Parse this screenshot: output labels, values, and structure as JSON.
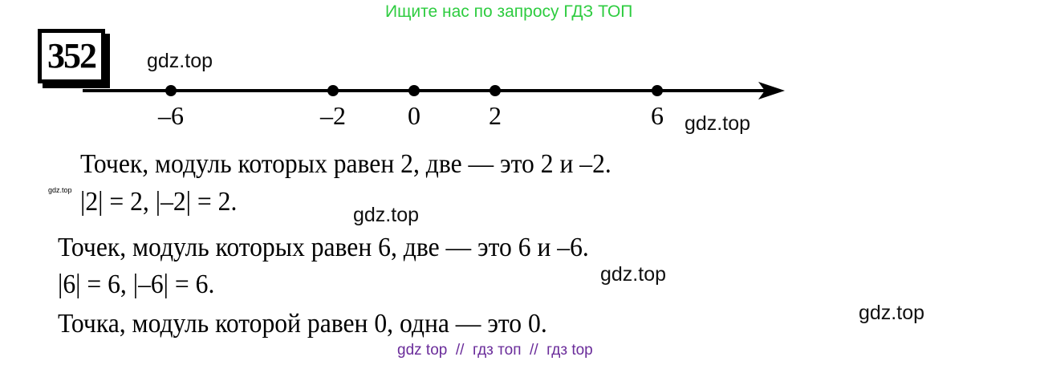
{
  "header_watermark": {
    "text": "Ищите нас по запросу ГДЗ ТОП",
    "color": "#2ecc40"
  },
  "problem_number": "352",
  "number_line": {
    "points": [
      -6,
      -2,
      0,
      2,
      6
    ],
    "labels": [
      "–6",
      "–2",
      "0",
      "2",
      "6"
    ]
  },
  "lines": [
    "Точек, модуль которых равен 2, две — это 2 и –2.",
    "|2| = 2, |–2| = 2.",
    "Точек, модуль которых равен 6, две — это 6 и –6.",
    "|6| = 6, |–6| = 6.",
    "Точка, модуль которой равен 0, одна — это 0."
  ],
  "watermarks": [
    "gdz.top",
    "gdz.top",
    "gdz.top",
    "gdz.top",
    "gdz.top",
    "gdz.top"
  ],
  "footer_watermark": {
    "text": "gdz top  //  гдз топ  //  гдз top",
    "color": "#6a2c9a"
  }
}
